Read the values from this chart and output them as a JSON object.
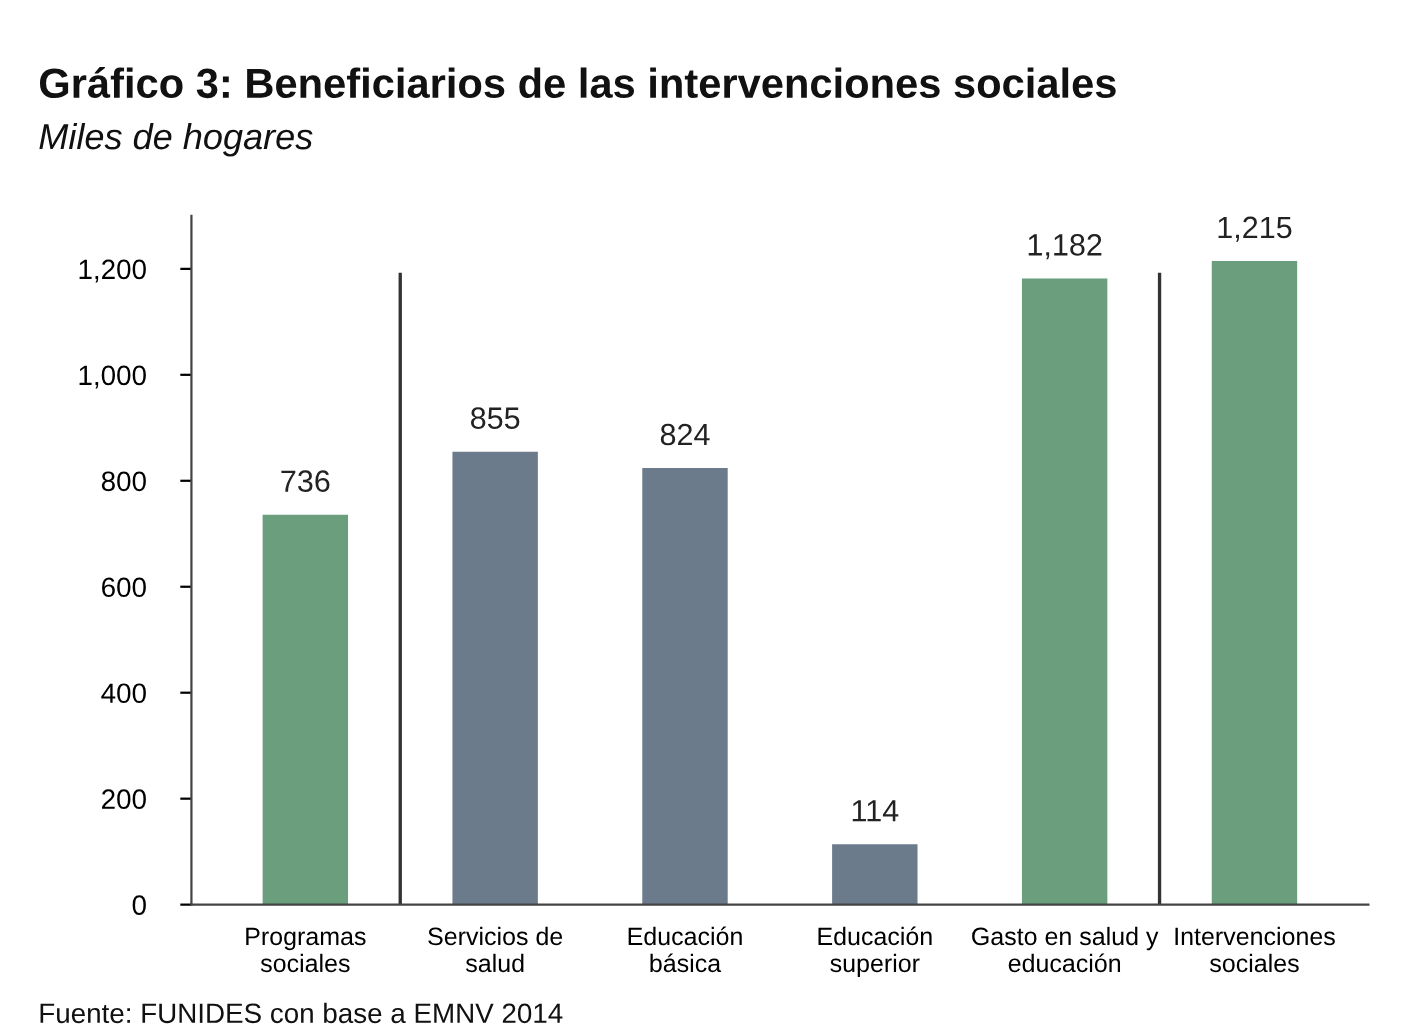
{
  "chart_data": {
    "type": "bar",
    "title": "Gráfico 3: Beneficiarios de las intervenciones sociales",
    "subtitle": "Miles de hogares",
    "categories": [
      "Programas\nsociales",
      "Servicios de\nsalud",
      "Educación\nbásica",
      "Educación\nsuperior",
      "Gasto en salud y\neducación",
      "Intervenciones\nsociales"
    ],
    "values": [
      736,
      855,
      824,
      114,
      1182,
      1215
    ],
    "value_labels": [
      "736",
      "855",
      "824",
      "114",
      "1,182",
      "1,215"
    ],
    "colors": [
      "#6b9e7c",
      "#6c7b8b",
      "#6c7b8b",
      "#6c7b8b",
      "#6b9e7c",
      "#6b9e7c"
    ],
    "ylim": [
      0,
      1300
    ],
    "yticks": [
      0,
      200,
      400,
      600,
      800,
      {
        "value": 1000,
        "label": "1,000"
      },
      {
        "value": 1200,
        "label": "1,200"
      }
    ],
    "grid": false,
    "annotations": [
      "Fuente: FUNIDES con base a EMNV 2014"
    ]
  }
}
